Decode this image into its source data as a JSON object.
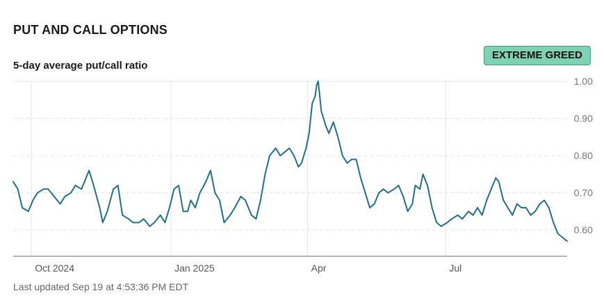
{
  "header": {
    "title": "PUT AND CALL OPTIONS",
    "subtitle": "5-day average put/call ratio",
    "badge": "EXTREME GREED"
  },
  "footer": {
    "last_updated": "Last updated Sep 19 at 4:53:36 PM EDT"
  },
  "colors": {
    "line": "#1f6f8b",
    "badge_bg": "#7fd1b4",
    "badge_border": "#3e9a79",
    "grid": "#e5e5e5"
  },
  "chart_data": {
    "type": "line",
    "title": "5-day average put/call ratio",
    "xlabel": "",
    "ylabel": "",
    "ylim": [
      0.55,
      1.0
    ],
    "yticks": [
      1.0,
      0.9,
      0.8,
      0.7,
      0.6
    ],
    "ytick_labels": [
      "1.00",
      "0.90",
      "0.80",
      "0.70",
      "0.60"
    ],
    "xlim": [
      "2024-09-19",
      "2025-09-19"
    ],
    "xticks": [
      {
        "date": "2024-10-01",
        "label": "Oct 2024"
      },
      {
        "date": "2025-01-01",
        "label": "Jan 2025"
      },
      {
        "date": "2025-04-01",
        "label": "Apr"
      },
      {
        "date": "2025-07-01",
        "label": "Jul"
      }
    ],
    "grid": true,
    "series": [
      {
        "values": [
          [
            "2024-09-19",
            0.73
          ],
          [
            "2024-09-22",
            0.71
          ],
          [
            "2024-09-25",
            0.66
          ],
          [
            "2024-09-29",
            0.65
          ],
          [
            "2024-10-02",
            0.68
          ],
          [
            "2024-10-05",
            0.7
          ],
          [
            "2024-10-09",
            0.71
          ],
          [
            "2024-10-12",
            0.71
          ],
          [
            "2024-10-16",
            0.69
          ],
          [
            "2024-10-20",
            0.67
          ],
          [
            "2024-10-23",
            0.69
          ],
          [
            "2024-10-27",
            0.7
          ],
          [
            "2024-10-30",
            0.72
          ],
          [
            "2024-11-03",
            0.71
          ],
          [
            "2024-11-06",
            0.74
          ],
          [
            "2024-11-08",
            0.76
          ],
          [
            "2024-11-11",
            0.72
          ],
          [
            "2024-11-15",
            0.66
          ],
          [
            "2024-11-17",
            0.62
          ],
          [
            "2024-11-20",
            0.65
          ],
          [
            "2024-11-24",
            0.71
          ],
          [
            "2024-11-27",
            0.72
          ],
          [
            "2024-11-30",
            0.64
          ],
          [
            "2024-12-04",
            0.63
          ],
          [
            "2024-12-07",
            0.62
          ],
          [
            "2024-12-11",
            0.62
          ],
          [
            "2024-12-14",
            0.63
          ],
          [
            "2024-12-18",
            0.61
          ],
          [
            "2024-12-21",
            0.62
          ],
          [
            "2024-12-25",
            0.64
          ],
          [
            "2024-12-28",
            0.62
          ],
          [
            "2024-12-31",
            0.66
          ],
          [
            "2025-01-03",
            0.71
          ],
          [
            "2025-01-06",
            0.72
          ],
          [
            "2025-01-09",
            0.65
          ],
          [
            "2025-01-12",
            0.65
          ],
          [
            "2025-01-14",
            0.68
          ],
          [
            "2025-01-17",
            0.66
          ],
          [
            "2025-01-20",
            0.7
          ],
          [
            "2025-01-24",
            0.73
          ],
          [
            "2025-01-27",
            0.76
          ],
          [
            "2025-01-30",
            0.7
          ],
          [
            "2025-02-02",
            0.68
          ],
          [
            "2025-02-05",
            0.62
          ],
          [
            "2025-02-09",
            0.64
          ],
          [
            "2025-02-12",
            0.66
          ],
          [
            "2025-02-16",
            0.69
          ],
          [
            "2025-02-19",
            0.68
          ],
          [
            "2025-02-23",
            0.64
          ],
          [
            "2025-02-26",
            0.63
          ],
          [
            "2025-03-01",
            0.68
          ],
          [
            "2025-03-04",
            0.75
          ],
          [
            "2025-03-07",
            0.8
          ],
          [
            "2025-03-11",
            0.82
          ],
          [
            "2025-03-14",
            0.8
          ],
          [
            "2025-03-17",
            0.81
          ],
          [
            "2025-03-20",
            0.82
          ],
          [
            "2025-03-23",
            0.8
          ],
          [
            "2025-03-26",
            0.77
          ],
          [
            "2025-03-28",
            0.78
          ],
          [
            "2025-03-31",
            0.82
          ],
          [
            "2025-04-02",
            0.86
          ],
          [
            "2025-04-04",
            0.94
          ],
          [
            "2025-04-06",
            0.96
          ],
          [
            "2025-04-07",
            0.99
          ],
          [
            "2025-04-08",
            1.0
          ],
          [
            "2025-04-10",
            0.92
          ],
          [
            "2025-04-13",
            0.88
          ],
          [
            "2025-04-15",
            0.86
          ],
          [
            "2025-04-18",
            0.89
          ],
          [
            "2025-04-21",
            0.85
          ],
          [
            "2025-04-24",
            0.8
          ],
          [
            "2025-04-27",
            0.78
          ],
          [
            "2025-04-30",
            0.79
          ],
          [
            "2025-05-03",
            0.79
          ],
          [
            "2025-05-06",
            0.74
          ],
          [
            "2025-05-09",
            0.7
          ],
          [
            "2025-05-12",
            0.66
          ],
          [
            "2025-05-15",
            0.67
          ],
          [
            "2025-05-18",
            0.7
          ],
          [
            "2025-05-21",
            0.71
          ],
          [
            "2025-05-24",
            0.7
          ],
          [
            "2025-05-28",
            0.71
          ],
          [
            "2025-05-31",
            0.72
          ],
          [
            "2025-06-03",
            0.69
          ],
          [
            "2025-06-06",
            0.65
          ],
          [
            "2025-06-09",
            0.67
          ],
          [
            "2025-06-11",
            0.72
          ],
          [
            "2025-06-14",
            0.71
          ],
          [
            "2025-06-16",
            0.75
          ],
          [
            "2025-06-19",
            0.72
          ],
          [
            "2025-06-22",
            0.66
          ],
          [
            "2025-06-25",
            0.62
          ],
          [
            "2025-06-28",
            0.61
          ],
          [
            "2025-07-02",
            0.62
          ],
          [
            "2025-07-05",
            0.63
          ],
          [
            "2025-07-09",
            0.64
          ],
          [
            "2025-07-12",
            0.63
          ],
          [
            "2025-07-16",
            0.65
          ],
          [
            "2025-07-19",
            0.64
          ],
          [
            "2025-07-22",
            0.66
          ],
          [
            "2025-07-25",
            0.64
          ],
          [
            "2025-07-28",
            0.68
          ],
          [
            "2025-07-31",
            0.71
          ],
          [
            "2025-08-03",
            0.74
          ],
          [
            "2025-08-05",
            0.73
          ],
          [
            "2025-08-08",
            0.68
          ],
          [
            "2025-08-11",
            0.66
          ],
          [
            "2025-08-14",
            0.64
          ],
          [
            "2025-08-17",
            0.67
          ],
          [
            "2025-08-20",
            0.66
          ],
          [
            "2025-08-23",
            0.66
          ],
          [
            "2025-08-26",
            0.64
          ],
          [
            "2025-08-29",
            0.65
          ],
          [
            "2025-09-01",
            0.67
          ],
          [
            "2025-09-04",
            0.68
          ],
          [
            "2025-09-07",
            0.66
          ],
          [
            "2025-09-10",
            0.62
          ],
          [
            "2025-09-13",
            0.59
          ],
          [
            "2025-09-16",
            0.58
          ],
          [
            "2025-09-19",
            0.57
          ]
        ]
      }
    ]
  }
}
